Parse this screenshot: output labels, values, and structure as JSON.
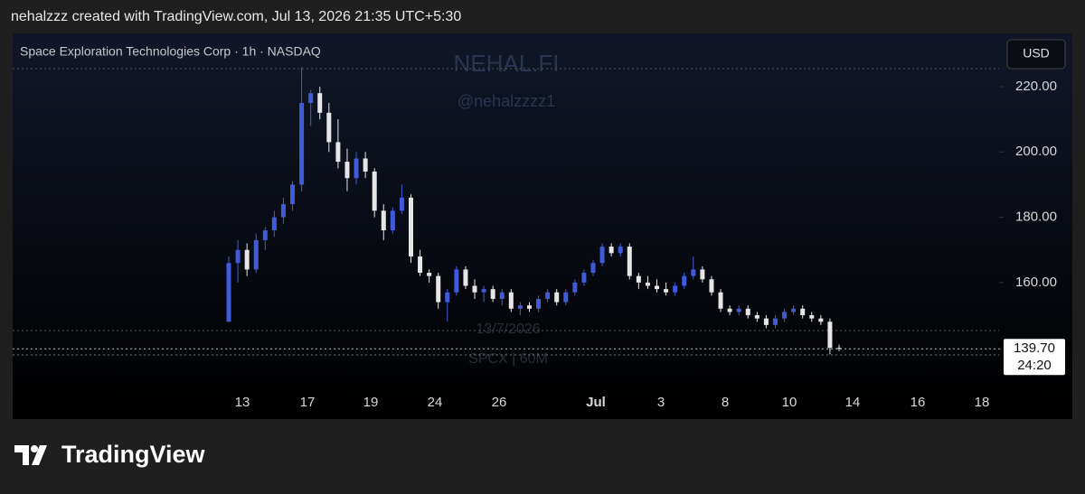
{
  "header": {
    "text": "nehalzzz created with TradingView.com, Jul 13, 2026 21:35 UTC+5:30"
  },
  "footer": {
    "brand": "TradingView"
  },
  "chart_data": {
    "type": "candlestick",
    "title": "Space Exploration Technologies Corp · 1h · NASDAQ",
    "currency": "USD",
    "watermark": {
      "name": "NEHAL.FI",
      "handle": "@nehalzzzz1",
      "date": "13/7/2026",
      "symbol": "SPCX | 60M"
    },
    "up_color": "#3f5bd9",
    "down_color": "#e6e6e6",
    "x_labels": [
      "13",
      "17",
      "19",
      "24",
      "26",
      "Jul",
      "3",
      "8",
      "10",
      "14",
      "16",
      "18"
    ],
    "open": [
      148,
      166,
      170,
      164,
      173,
      176,
      180,
      184,
      190,
      215,
      218,
      212,
      203,
      197,
      192,
      198,
      194,
      182,
      176,
      182,
      186,
      168,
      163,
      162,
      154,
      157,
      164,
      159,
      157,
      158,
      155,
      157,
      152,
      153,
      152,
      155,
      157,
      154,
      157,
      160,
      163,
      166,
      171,
      169,
      171,
      162,
      160,
      159,
      158,
      157,
      159,
      162,
      164,
      161,
      157,
      152,
      151,
      152,
      150,
      149,
      147,
      149,
      151,
      152,
      150,
      149,
      148,
      140
    ],
    "high": [
      168,
      173,
      172,
      175,
      177,
      182,
      186,
      191,
      226,
      219,
      220,
      215,
      210,
      201,
      200,
      200,
      195,
      184,
      183,
      190,
      187,
      170,
      164,
      163,
      158,
      165,
      165,
      161,
      159,
      159,
      158,
      158,
      154,
      154,
      156,
      158,
      158,
      158,
      161,
      164,
      167,
      172,
      172,
      172,
      172,
      163,
      162,
      161,
      160,
      160,
      163,
      168,
      165,
      162,
      158,
      153,
      153,
      153,
      151,
      150,
      150,
      152,
      153,
      153,
      151,
      150,
      149,
      141
    ],
    "low": [
      148,
      160,
      162,
      163,
      170,
      174,
      178,
      182,
      188,
      208,
      210,
      200,
      195,
      188,
      190,
      192,
      180,
      173,
      175,
      181,
      166,
      162,
      160,
      152,
      148,
      156,
      158,
      155,
      154,
      154,
      153,
      151,
      150,
      151,
      151,
      154,
      153,
      153,
      156,
      159,
      162,
      165,
      168,
      168,
      161,
      158,
      158,
      157,
      156,
      156,
      158,
      161,
      160,
      156,
      151,
      150,
      150,
      149,
      148,
      146,
      146,
      148,
      150,
      149,
      148,
      147,
      138,
      139
    ],
    "close": [
      166,
      170,
      164,
      173,
      176,
      180,
      184,
      190,
      215,
      218,
      212,
      203,
      197,
      192,
      198,
      194,
      182,
      176,
      182,
      186,
      168,
      163,
      162,
      154,
      157,
      164,
      159,
      157,
      158,
      155,
      157,
      152,
      153,
      152,
      155,
      157,
      154,
      157,
      160,
      163,
      166,
      171,
      169,
      171,
      162,
      160,
      159,
      158,
      157,
      159,
      162,
      164,
      161,
      157,
      152,
      151,
      152,
      150,
      149,
      147,
      149,
      151,
      152,
      150,
      149,
      148,
      140,
      139.7
    ],
    "ylim": [
      118.2,
      236.3
    ],
    "yticks": [
      {
        "value": 160,
        "label": "160.00"
      },
      {
        "value": 180,
        "label": "180.00"
      },
      {
        "value": 200,
        "label": "200.00"
      },
      {
        "value": 220,
        "label": "220.00"
      }
    ],
    "last_price": {
      "value": 139.7,
      "label": "139.70"
    },
    "countdown": "24:20"
  }
}
